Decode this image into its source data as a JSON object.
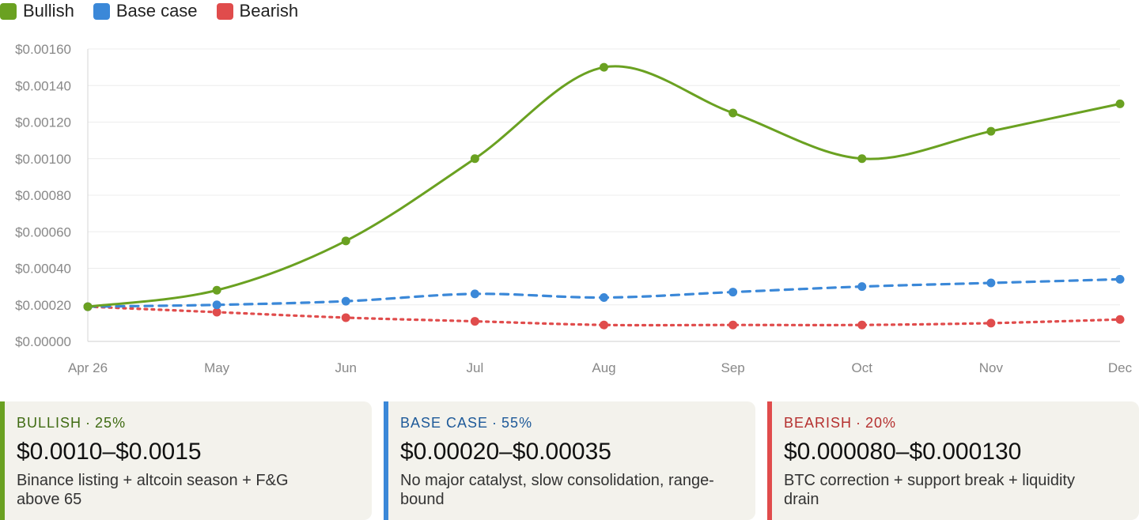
{
  "legend": [
    {
      "label": "Bullish",
      "color": "#6aa121"
    },
    {
      "label": "Base case",
      "color": "#3b88d8"
    },
    {
      "label": "Bearish",
      "color": "#e04c4c"
    }
  ],
  "chart_data": {
    "type": "line",
    "categories": [
      "Apr 26",
      "May",
      "Jun",
      "Jul",
      "Aug",
      "Sep",
      "Oct",
      "Nov",
      "Dec"
    ],
    "y_ticks": [
      "$0.00000",
      "$0.00020",
      "$0.00040",
      "$0.00060",
      "$0.00080",
      "$0.00100",
      "$0.00120",
      "$0.00140",
      "$0.00160"
    ],
    "ylim": [
      0,
      0.0016
    ],
    "grid": true,
    "legend_position": "top-left",
    "series": [
      {
        "name": "Bullish",
        "color": "#6aa121",
        "style": "solid",
        "values": [
          0.00019,
          0.00028,
          0.00055,
          0.001,
          0.0015,
          0.00125,
          0.001,
          0.00115,
          0.0013
        ]
      },
      {
        "name": "Base case",
        "color": "#3b88d8",
        "style": "dashed",
        "values": [
          0.00019,
          0.0002,
          0.00022,
          0.00026,
          0.00024,
          0.00027,
          0.0003,
          0.00032,
          0.00034
        ]
      },
      {
        "name": "Bearish",
        "color": "#e04c4c",
        "style": "dotted",
        "values": [
          0.00019,
          0.00016,
          0.00013,
          0.00011,
          9e-05,
          9e-05,
          9e-05,
          0.0001,
          0.00012
        ]
      }
    ]
  },
  "cards": [
    {
      "title": "BULLISH",
      "sep": "·",
      "pct": "25%",
      "color": "#6aa121",
      "title_color": "#3f6b12",
      "range": "$0.0010–$0.0015",
      "desc": "Binance listing + altcoin season + F&G above 65"
    },
    {
      "title": "BASE CASE",
      "sep": "·",
      "pct": "55%",
      "color": "#3b88d8",
      "title_color": "#1e5a99",
      "range": "$0.00020–$0.00035",
      "desc": "No major catalyst, slow consolidation, range-bound"
    },
    {
      "title": "BEARISH",
      "sep": "·",
      "pct": "20%",
      "color": "#e04c4c",
      "title_color": "#b5302f",
      "range": "$0.000080–$0.000130",
      "desc": "BTC correction + support break + liquidity drain"
    }
  ]
}
